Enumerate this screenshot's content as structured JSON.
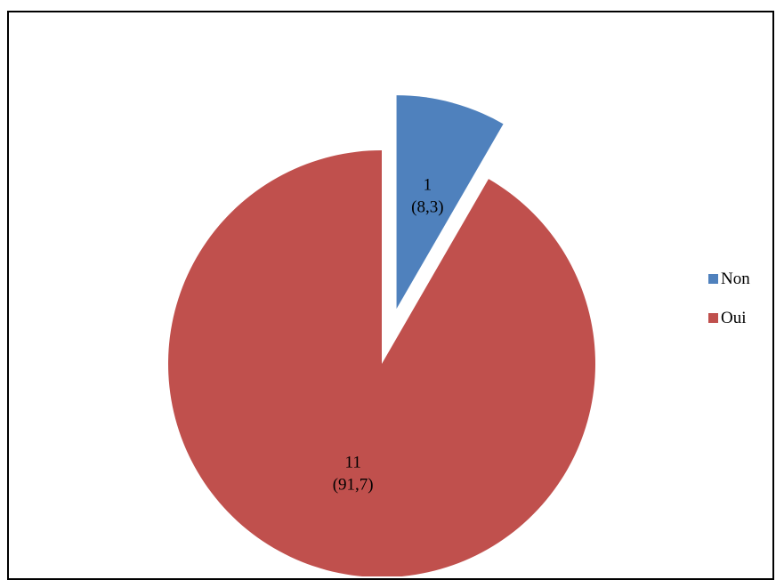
{
  "chart_data": {
    "type": "pie",
    "categories": [
      "Non",
      "Oui"
    ],
    "values": [
      1,
      11
    ],
    "percentages": [
      8.3,
      91.7
    ],
    "data_labels": [
      {
        "count": "1",
        "percent": "(8,3)"
      },
      {
        "count": "11",
        "percent": "(91,7)"
      }
    ],
    "colors": [
      "#4f81bd",
      "#c0504d"
    ],
    "exploded": "Non",
    "legend": {
      "placement": "right",
      "entries": [
        "Non",
        "Oui"
      ]
    },
    "title": ""
  }
}
